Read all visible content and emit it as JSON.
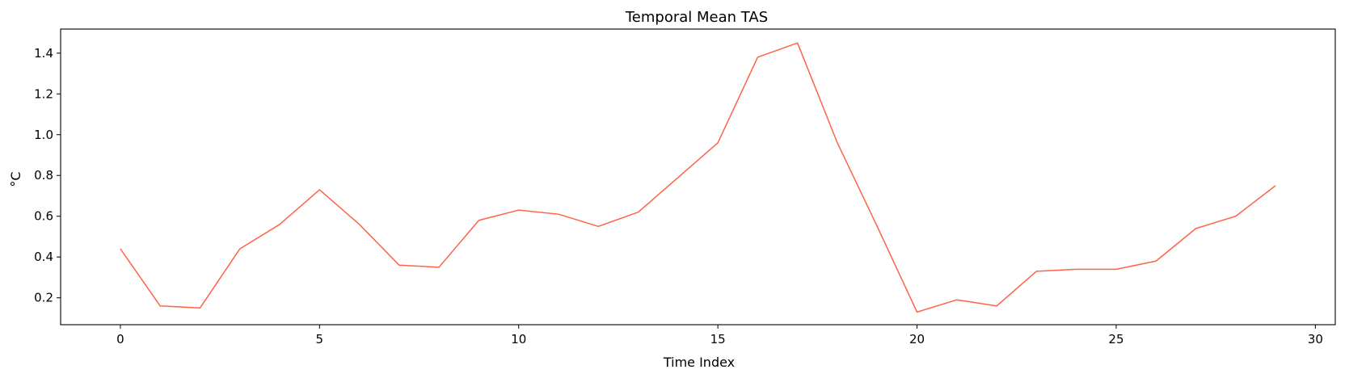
{
  "chart_data": {
    "type": "line",
    "title": "Temporal Mean TAS",
    "xlabel": "Time Index",
    "ylabel": "°C",
    "xlim": [
      -1.5,
      30.5
    ],
    "ylim": [
      0.068,
      1.518
    ],
    "xticks": [
      0,
      5,
      10,
      15,
      20,
      25,
      30
    ],
    "yticks": [
      0.2,
      0.4,
      0.6,
      0.8,
      1.0,
      1.2,
      1.4
    ],
    "ytick_labels": [
      "0.2",
      "0.4",
      "0.6",
      "0.8",
      "1.0",
      "1.2",
      "1.4"
    ],
    "grid": false,
    "line_color": "#ff6347",
    "series": [
      {
        "x": [
          0,
          1,
          2,
          3,
          4,
          5,
          6,
          7,
          8,
          9,
          10,
          11,
          12,
          13,
          14,
          15,
          16,
          17,
          18,
          19,
          20,
          21,
          22,
          23,
          24,
          25,
          26,
          27,
          28,
          29
        ],
        "values": [
          0.44,
          0.16,
          0.15,
          0.44,
          0.56,
          0.73,
          0.56,
          0.36,
          0.35,
          0.58,
          0.63,
          0.61,
          0.55,
          0.62,
          0.79,
          0.96,
          1.38,
          1.45,
          0.96,
          0.55,
          0.13,
          0.19,
          0.16,
          0.33,
          0.34,
          0.34,
          0.38,
          0.54,
          0.6,
          0.75
        ]
      }
    ]
  }
}
